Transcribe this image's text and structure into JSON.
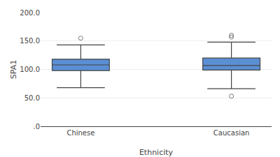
{
  "chart_data": {
    "type": "box",
    "xlabel": "Ethnicity",
    "ylabel": "SPA1",
    "categories": [
      "Chinese",
      "Caucasian"
    ],
    "boxes": [
      {
        "q1": 98.0,
        "median": 108.0,
        "q3": 118.0,
        "whisker_low": 68.0,
        "whisker_high": 143.0,
        "outliers": [
          155.0
        ]
      },
      {
        "q1": 99.0,
        "median": 107.0,
        "q3": 120.0,
        "whisker_low": 66.0,
        "whisker_high": 148.0,
        "outliers": [
          157.0,
          160.0,
          53.0
        ]
      }
    ],
    "color": "#5B8FD4",
    "ylim": [
      0,
      200
    ],
    "yticks": [
      {
        "value": 0,
        "label": ".0"
      },
      {
        "value": 50.0,
        "label": "50.0"
      },
      {
        "value": 100.0,
        "label": "100.0"
      },
      {
        "value": 150.0,
        "label": "150.0"
      },
      {
        "value": 200.0,
        "label": "200.0"
      }
    ],
    "grid": true
  }
}
